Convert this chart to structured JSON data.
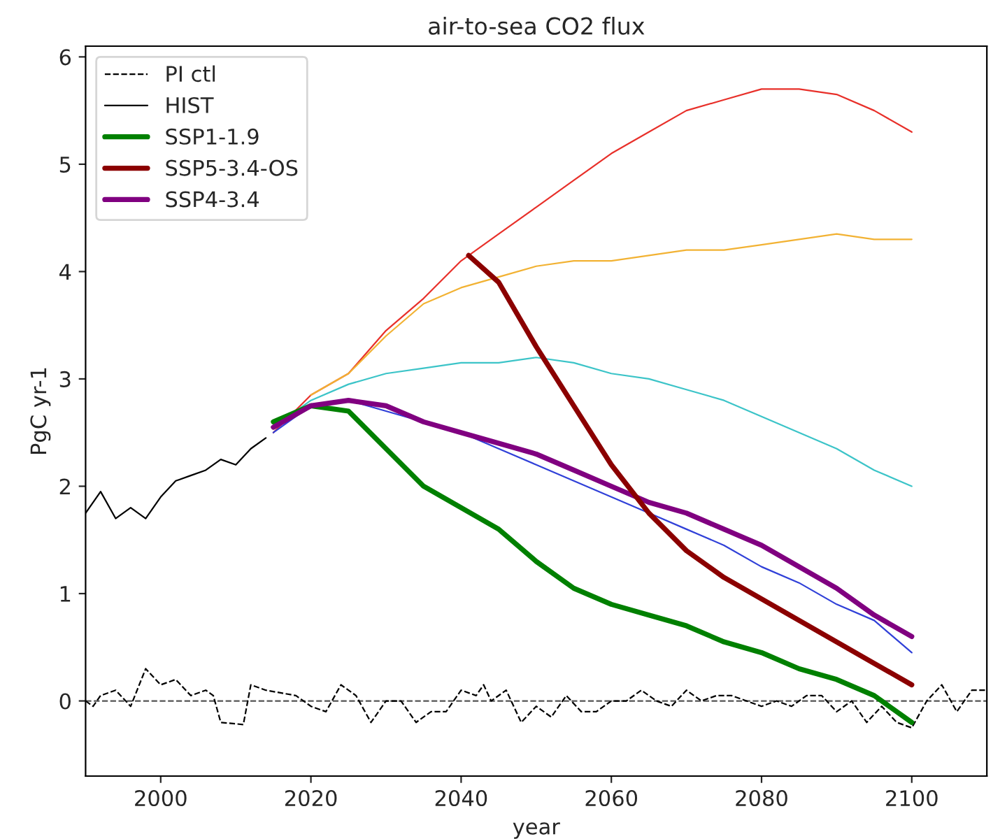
{
  "chart_data": {
    "type": "line",
    "title": "air-to-sea CO2 flux",
    "xlabel": "year",
    "ylabel": "PgC yr-1",
    "xlim": [
      1990,
      2110
    ],
    "xticks": [
      2000,
      2020,
      2040,
      2060,
      2080,
      2100
    ],
    "ylim": [
      -0.7,
      6.1
    ],
    "yticks": [
      0,
      1,
      2,
      3,
      4,
      5,
      6
    ],
    "grid": false,
    "legend": "top left",
    "ref_lines": [
      {
        "axis": "y",
        "value": 0,
        "color": "#555555",
        "line_style": "dashed"
      }
    ],
    "series": [
      {
        "name": "PI ctl",
        "color": "#000000",
        "line_style": "dashed",
        "x": [
          1990,
          1991,
          1992,
          1994,
          1996,
          1998,
          2000,
          2002,
          2004,
          2006,
          2007,
          2008,
          2011,
          2012,
          2014,
          2018,
          2020,
          2022,
          2024,
          2026,
          2028,
          2030,
          2032,
          2034,
          2036,
          2038,
          2040,
          2042,
          2043,
          2044,
          2046,
          2048,
          2050,
          2052,
          2054,
          2056,
          2058,
          2060,
          2062,
          2064,
          2066,
          2068,
          2070,
          2072,
          2074,
          2076,
          2078,
          2080,
          2082,
          2084,
          2086,
          2088,
          2090,
          2092,
          2094,
          2096,
          2098,
          2100,
          2102,
          2104,
          2106,
          2108,
          2110
        ],
        "values": [
          0,
          -0.05,
          0.05,
          0.1,
          -0.05,
          0.3,
          0.15,
          0.2,
          0.05,
          0.1,
          0.05,
          -0.2,
          -0.22,
          0.15,
          0.1,
          0.05,
          -0.05,
          -0.1,
          0.15,
          0.05,
          -0.2,
          0,
          0,
          -0.2,
          -0.1,
          -0.1,
          0.1,
          0.05,
          0.15,
          0,
          0.1,
          -0.2,
          -0.05,
          -0.15,
          0.05,
          -0.1,
          -0.1,
          0,
          0,
          0.1,
          0,
          -0.05,
          0.1,
          0,
          0.05,
          0.05,
          0,
          -0.05,
          0,
          -0.05,
          0.05,
          0.05,
          -0.1,
          0,
          -0.2,
          -0.05,
          -0.2,
          -0.25,
          0,
          0.15,
          -0.1,
          0.1,
          0.1
        ]
      },
      {
        "name": "HIST",
        "color": "#000000",
        "line_style": "solid",
        "x": [
          1990,
          1992,
          1994,
          1996,
          1998,
          2000,
          2002,
          2004,
          2006,
          2008,
          2010,
          2012,
          2014
        ],
        "values": [
          1.75,
          1.95,
          1.7,
          1.8,
          1.7,
          1.9,
          2.05,
          2.1,
          2.15,
          2.25,
          2.2,
          2.35,
          2.45
        ]
      },
      {
        "name": "SSP1-1.9",
        "color": "#008000",
        "line_style": "solid",
        "x": [
          2015,
          2020,
          2025,
          2030,
          2035,
          2040,
          2045,
          2050,
          2055,
          2060,
          2065,
          2070,
          2075,
          2080,
          2085,
          2090,
          2095,
          2100
        ],
        "values": [
          2.6,
          2.75,
          2.7,
          2.35,
          2.0,
          1.8,
          1.6,
          1.3,
          1.05,
          0.9,
          0.8,
          0.7,
          0.55,
          0.45,
          0.3,
          0.2,
          0.05,
          -0.2
        ]
      },
      {
        "name": "SSP5-3.4-OS",
        "color": "#8b0000",
        "line_style": "solid",
        "x": [
          2041,
          2045,
          2050,
          2055,
          2060,
          2065,
          2070,
          2075,
          2080,
          2085,
          2090,
          2095,
          2100
        ],
        "values": [
          4.15,
          3.9,
          3.3,
          2.75,
          2.2,
          1.75,
          1.4,
          1.15,
          0.95,
          0.75,
          0.55,
          0.35,
          0.15
        ]
      },
      {
        "name": "SSP4-3.4",
        "color": "#800080",
        "line_style": "solid",
        "x": [
          2015,
          2020,
          2025,
          2030,
          2035,
          2040,
          2045,
          2050,
          2055,
          2060,
          2065,
          2070,
          2075,
          2080,
          2085,
          2090,
          2095,
          2100
        ],
        "values": [
          2.55,
          2.75,
          2.8,
          2.75,
          2.6,
          2.5,
          2.4,
          2.3,
          2.15,
          2.0,
          1.85,
          1.75,
          1.6,
          1.45,
          1.25,
          1.05,
          0.8,
          0.6
        ]
      },
      {
        "color": "#e8302a",
        "line_style": "solid",
        "x": [
          2015,
          2020,
          2025,
          2030,
          2035,
          2040,
          2045,
          2050,
          2055,
          2060,
          2065,
          2070,
          2075,
          2080,
          2085,
          2090,
          2095,
          2100
        ],
        "values": [
          2.5,
          2.85,
          3.05,
          3.45,
          3.75,
          4.1,
          4.35,
          4.6,
          4.85,
          5.1,
          5.3,
          5.5,
          5.6,
          5.7,
          5.7,
          5.65,
          5.5,
          5.3
        ]
      },
      {
        "color": "#f2b233",
        "line_style": "solid",
        "x": [
          2020,
          2025,
          2030,
          2035,
          2040,
          2045,
          2050,
          2055,
          2060,
          2065,
          2070,
          2075,
          2080,
          2085,
          2090,
          2095,
          2100
        ],
        "values": [
          2.85,
          3.05,
          3.4,
          3.7,
          3.85,
          3.95,
          4.05,
          4.1,
          4.1,
          4.15,
          4.2,
          4.2,
          4.25,
          4.3,
          4.35,
          4.3,
          4.3
        ]
      },
      {
        "color": "#3cc4c8",
        "line_style": "solid",
        "x": [
          2015,
          2020,
          2025,
          2030,
          2035,
          2040,
          2045,
          2050,
          2055,
          2060,
          2065,
          2070,
          2075,
          2080,
          2085,
          2090,
          2095,
          2100
        ],
        "values": [
          2.55,
          2.8,
          2.95,
          3.05,
          3.1,
          3.15,
          3.15,
          3.2,
          3.15,
          3.05,
          3.0,
          2.9,
          2.8,
          2.65,
          2.5,
          2.35,
          2.15,
          2.0
        ]
      },
      {
        "color": "#3040d8",
        "line_style": "solid",
        "x": [
          2015,
          2020,
          2025,
          2030,
          2035,
          2040,
          2045,
          2050,
          2055,
          2060,
          2065,
          2070,
          2075,
          2080,
          2085,
          2090,
          2095,
          2100
        ],
        "values": [
          2.5,
          2.75,
          2.8,
          2.7,
          2.6,
          2.5,
          2.35,
          2.2,
          2.05,
          1.9,
          1.75,
          1.6,
          1.45,
          1.25,
          1.1,
          0.9,
          0.75,
          0.45
        ]
      }
    ]
  }
}
